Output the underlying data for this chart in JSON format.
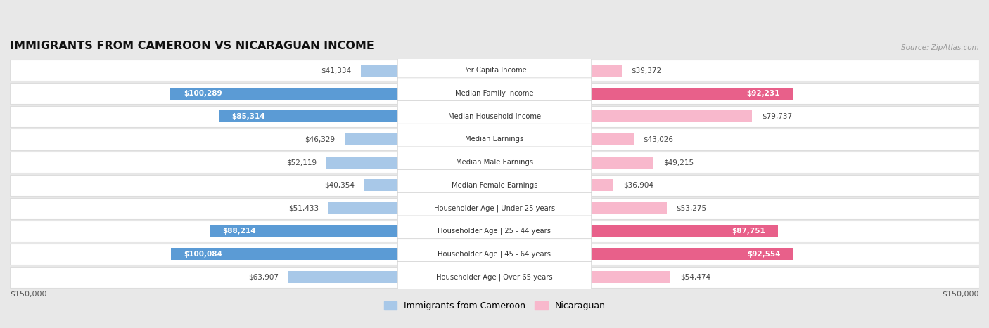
{
  "title": "IMMIGRANTS FROM CAMEROON VS NICARAGUAN INCOME",
  "source": "Source: ZipAtlas.com",
  "categories": [
    "Per Capita Income",
    "Median Family Income",
    "Median Household Income",
    "Median Earnings",
    "Median Male Earnings",
    "Median Female Earnings",
    "Householder Age | Under 25 years",
    "Householder Age | 25 - 44 years",
    "Householder Age | 45 - 64 years",
    "Householder Age | Over 65 years"
  ],
  "cameroon_values": [
    41334,
    100289,
    85314,
    46329,
    52119,
    40354,
    51433,
    88214,
    100084,
    63907
  ],
  "nicaraguan_values": [
    39372,
    92231,
    79737,
    43026,
    49215,
    36904,
    53275,
    87751,
    92554,
    54474
  ],
  "cameroon_color_light": "#a8c8e8",
  "cameroon_color_strong": "#5b9bd5",
  "nicaraguan_color_light": "#f8b8cc",
  "nicaraguan_color_strong": "#e8608a",
  "max_value": 150000,
  "strong_threshold": 80000,
  "row_bg_light": "#f8f8f8",
  "row_bg_dark": "#eeeeee",
  "row_border": "#dddddd",
  "fig_bg": "#e8e8e8"
}
